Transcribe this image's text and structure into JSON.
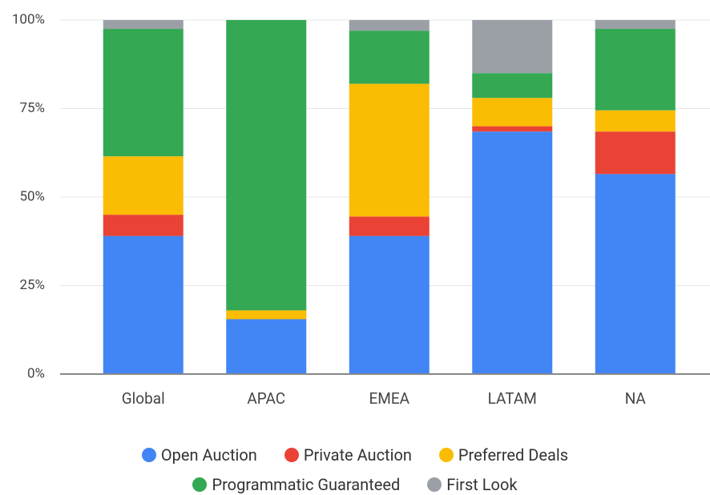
{
  "chart_data": {
    "type": "bar",
    "stacked": true,
    "categories": [
      "Global",
      "APAC",
      "EMEA",
      "LATAM",
      "NA"
    ],
    "series": [
      {
        "name": "Open Auction",
        "color": "#4285f4",
        "values": [
          39,
          15.5,
          39,
          68.5,
          56.5
        ]
      },
      {
        "name": "Private Auction",
        "color": "#ea4335",
        "values": [
          6,
          0,
          5.5,
          1.5,
          12
        ]
      },
      {
        "name": "Preferred Deals",
        "color": "#fbbc04",
        "values": [
          16.5,
          2.5,
          37.5,
          8,
          6
        ]
      },
      {
        "name": "Programmatic Guaranteed",
        "color": "#34a853",
        "values": [
          36,
          82,
          15,
          7,
          23
        ]
      },
      {
        "name": "First Look",
        "color": "#9aa0a6",
        "values": [
          2.5,
          0,
          3,
          15,
          2.5
        ]
      }
    ],
    "ylim": [
      0,
      100
    ],
    "yticks": [
      {
        "value": 0,
        "label": "0%"
      },
      {
        "value": 25,
        "label": "25%"
      },
      {
        "value": 50,
        "label": "50%"
      },
      {
        "value": 75,
        "label": "75%"
      },
      {
        "value": 100,
        "label": "100%"
      }
    ],
    "grid": true,
    "legend": "bottom"
  }
}
